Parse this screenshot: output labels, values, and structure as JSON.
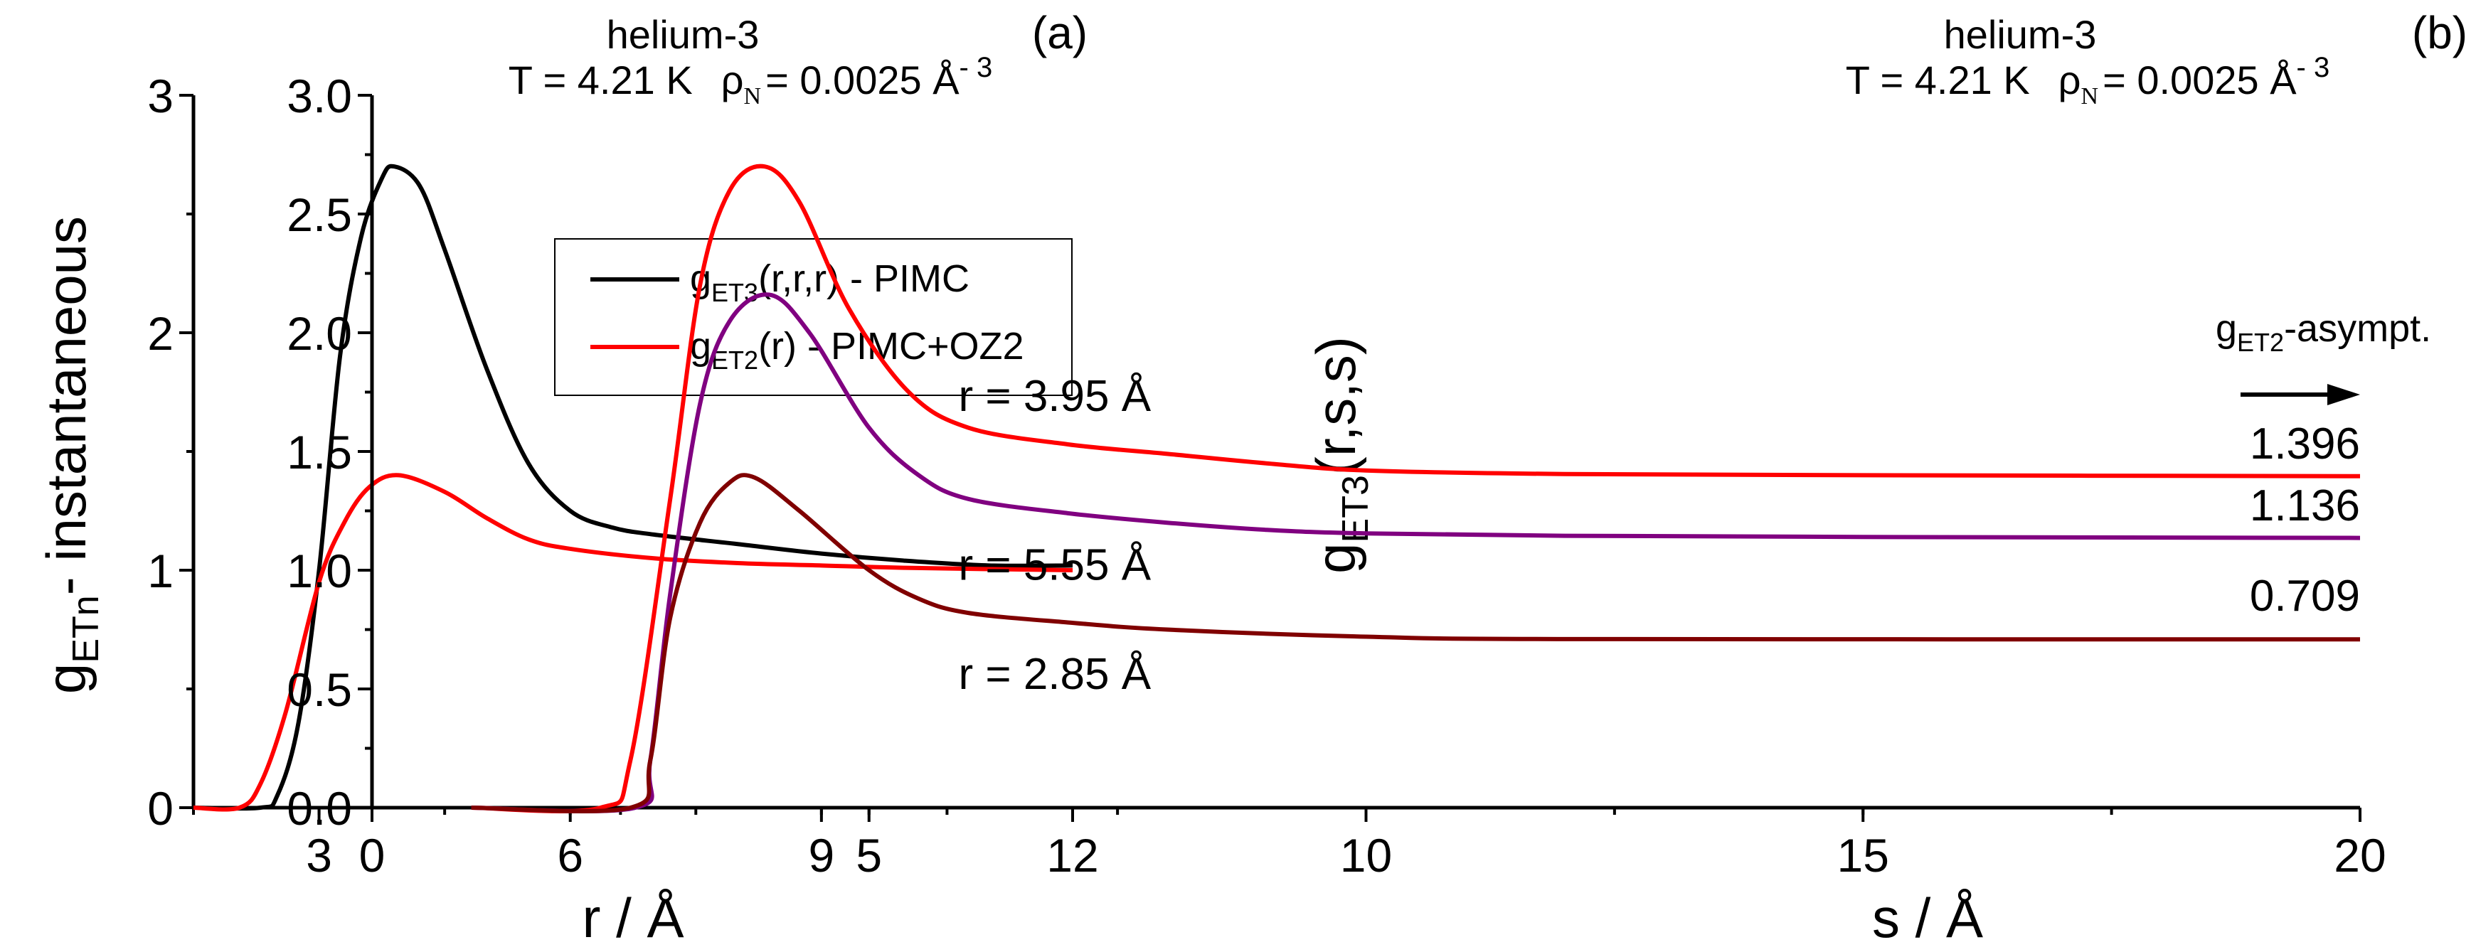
{
  "chart_data": [
    {
      "type": "line",
      "panel_label": "(a)",
      "title": {
        "line1": "helium-3",
        "temp": "T = 4.21 K",
        "rho": "ρ",
        "rho_sub": "N",
        "rho_val": "= 0.0025 Å",
        "rho_sup": "- 3"
      },
      "xlabel": "r / Å",
      "ylabel": {
        "symbol": "g",
        "sub": "ETn",
        "rest": "- instantaneous"
      },
      "xlim": [
        1.5,
        12
      ],
      "ylim": [
        0,
        3
      ],
      "xticks": [
        3,
        6,
        9,
        12
      ],
      "yticks": [
        0,
        1,
        2,
        3
      ],
      "grid": false,
      "legend_position": "upper-right",
      "series": [
        {
          "name": {
            "symbol": "g",
            "sub": "ET3",
            "rest": "(r,r,r) - PIMC"
          },
          "color": "#000000",
          "x": [
            1.5,
            2.3,
            2.5,
            2.75,
            3.0,
            3.25,
            3.5,
            3.75,
            3.9,
            4.2,
            4.5,
            5.0,
            5.5,
            6.0,
            6.5,
            7,
            8,
            9,
            10,
            11,
            12
          ],
          "y": [
            0,
            0,
            0.05,
            0.35,
            1.0,
            1.9,
            2.4,
            2.65,
            2.7,
            2.62,
            2.35,
            1.85,
            1.45,
            1.25,
            1.18,
            1.15,
            1.11,
            1.07,
            1.04,
            1.02,
            1.02
          ]
        },
        {
          "name": {
            "symbol": "g",
            "sub": "ET2",
            "rest": "(r) - PIMC+OZ2"
          },
          "color": "#ff0000",
          "x": [
            1.5,
            2.05,
            2.3,
            2.6,
            3.0,
            3.3,
            3.6,
            3.95,
            4.5,
            5.0,
            5.5,
            6.0,
            7,
            8,
            9,
            10,
            12
          ],
          "y": [
            0,
            0,
            0.1,
            0.4,
            0.95,
            1.2,
            1.35,
            1.4,
            1.33,
            1.22,
            1.13,
            1.09,
            1.05,
            1.03,
            1.02,
            1.01,
            1.0
          ]
        }
      ]
    },
    {
      "type": "line",
      "panel_label": "(b)",
      "title": {
        "line1": "helium-3",
        "temp": "T = 4.21 K",
        "rho": "ρ",
        "rho_sub": "N",
        "rho_val": "= 0.0025 Å",
        "rho_sup": "- 3"
      },
      "xlabel": "s / Å",
      "ylabel": {
        "symbol": "g",
        "sub": "ET3",
        "rest": "(r,s,s)"
      },
      "xlim": [
        0,
        20
      ],
      "ylim": [
        0,
        3
      ],
      "xticks": [
        0,
        5,
        10,
        15,
        20
      ],
      "yticks": [
        "0.0",
        "0.5",
        "1.0",
        "1.5",
        "2.0",
        "2.5",
        "3.0"
      ],
      "grid": false,
      "asymptote_label": {
        "symbol": "g",
        "sub": "ET2",
        "rest": "-asympt."
      },
      "series": [
        {
          "name": "r = 3.95 Å",
          "color": "#ff0000",
          "asymptote": "1.396",
          "x": [
            1,
            2.3,
            2.6,
            3.0,
            3.3,
            3.6,
            3.95,
            4.3,
            4.8,
            5.4,
            6,
            7,
            8,
            9,
            10,
            12,
            15,
            20
          ],
          "y": [
            0,
            0,
            0.2,
            1.3,
            2.2,
            2.6,
            2.7,
            2.55,
            2.1,
            1.75,
            1.6,
            1.53,
            1.49,
            1.45,
            1.42,
            1.405,
            1.4,
            1.396
          ]
        },
        {
          "name": "r = 5.55 Å",
          "color": "#800080",
          "asymptote": "1.136",
          "x": [
            1,
            2.65,
            2.8,
            3.0,
            3.3,
            3.6,
            4.0,
            4.4,
            5.0,
            5.5,
            6,
            7,
            8,
            9,
            10,
            12,
            15,
            20
          ],
          "y": [
            0,
            0,
            0.2,
            0.9,
            1.7,
            2.05,
            2.16,
            2.0,
            1.6,
            1.4,
            1.3,
            1.24,
            1.2,
            1.17,
            1.155,
            1.145,
            1.14,
            1.136
          ]
        },
        {
          "name": "r = 2.85 Å",
          "color": "#800000",
          "asymptote": "0.709",
          "x": [
            1,
            2.6,
            2.8,
            3.0,
            3.3,
            3.6,
            3.85,
            4.3,
            5.0,
            5.5,
            6,
            7,
            8,
            10,
            12,
            20
          ],
          "y": [
            0,
            0,
            0.2,
            0.8,
            1.2,
            1.37,
            1.39,
            1.25,
            1.0,
            0.88,
            0.82,
            0.78,
            0.75,
            0.72,
            0.71,
            0.709
          ]
        }
      ]
    }
  ]
}
